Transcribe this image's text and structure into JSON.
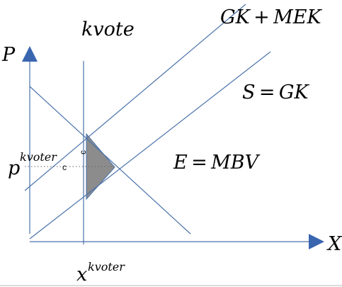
{
  "diagram": {
    "title": "kvote",
    "y_axis_label": "P",
    "x_axis_label": "X",
    "price_label_base": "p",
    "price_label_sup": "kvoter",
    "quantity_label_base": "x",
    "quantity_label_sup": "kvoter",
    "curve_gk_mek": "GK + MEK",
    "curve_s_gk": "S = GK",
    "curve_e_mbv": "E = MBV",
    "c_label_vertical": "c",
    "c_label_horizontal": "c",
    "colors": {
      "lines": "#4a72aa",
      "arrows": "#3a66b0",
      "triangle_fill": "#8c8c8c",
      "triangle_stroke": "#4a72aa",
      "dotted": "#666666"
    }
  }
}
